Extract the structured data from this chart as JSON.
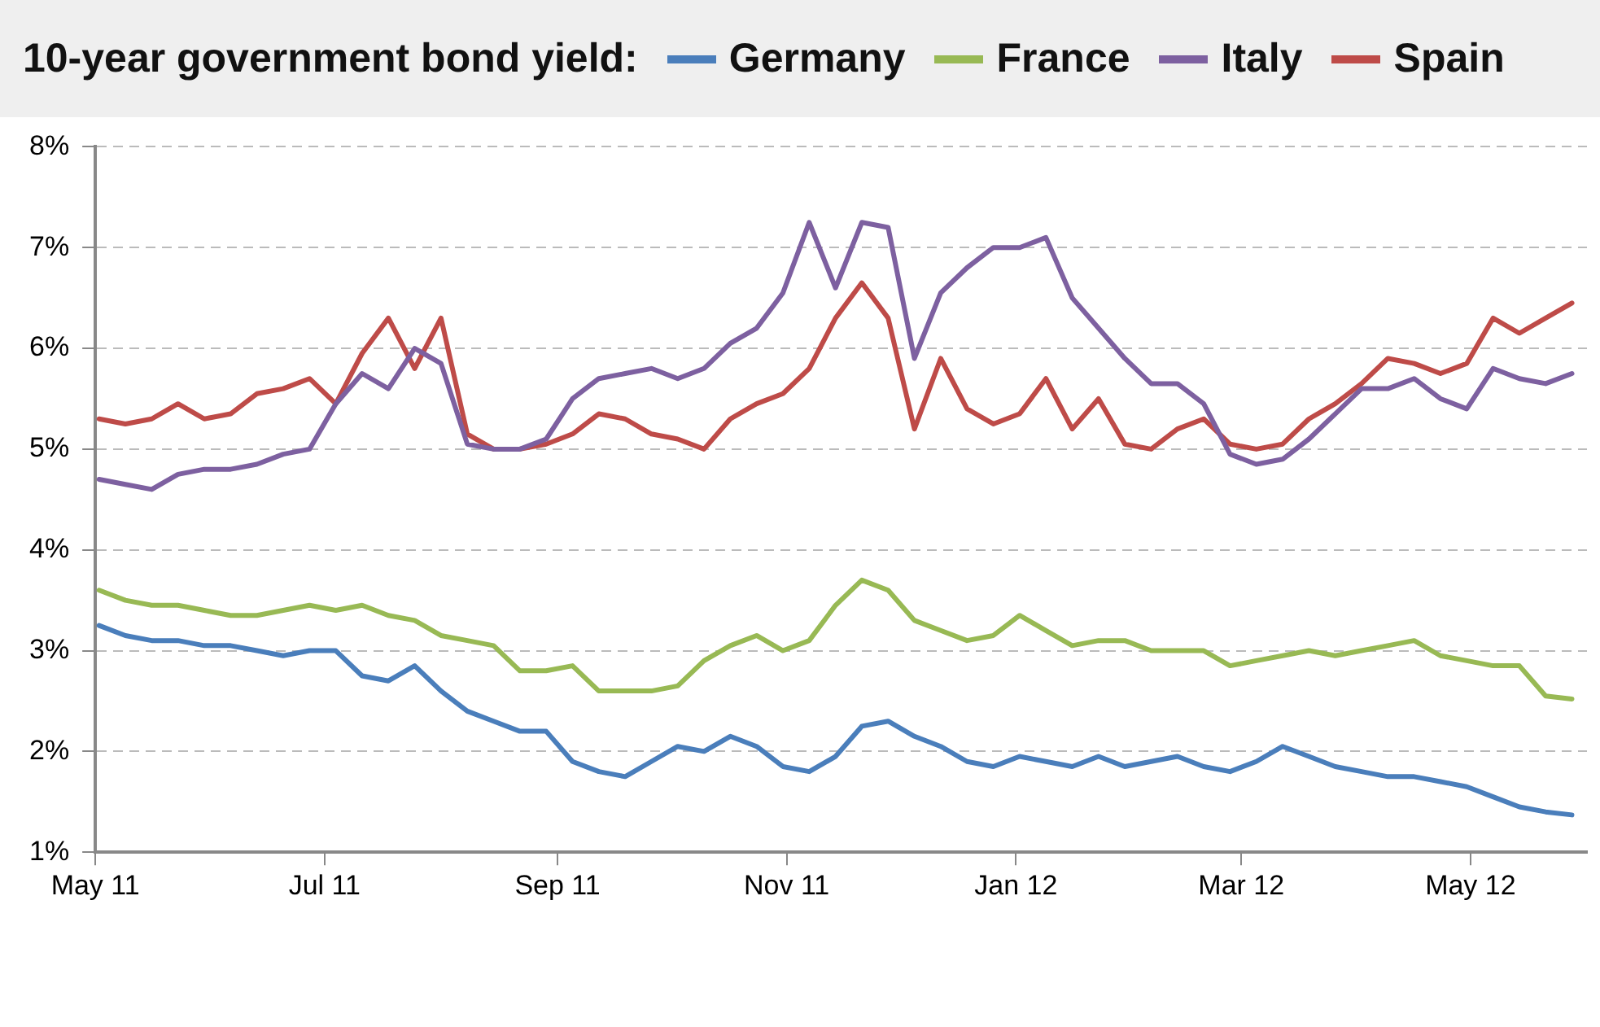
{
  "chart_data": {
    "type": "line",
    "title": "10-year government bond yield:",
    "legend": "top",
    "grid": "y",
    "marker": "none",
    "line_style": "solid",
    "x": [
      "2011-05-02",
      "2011-05-09",
      "2011-05-16",
      "2011-05-23",
      "2011-05-30",
      "2011-06-06",
      "2011-06-13",
      "2011-06-20",
      "2011-06-27",
      "2011-07-04",
      "2011-07-11",
      "2011-07-18",
      "2011-07-25",
      "2011-08-01",
      "2011-08-08",
      "2011-08-15",
      "2011-08-22",
      "2011-08-29",
      "2011-09-05",
      "2011-09-12",
      "2011-09-19",
      "2011-09-26",
      "2011-10-03",
      "2011-10-10",
      "2011-10-17",
      "2011-10-24",
      "2011-10-31",
      "2011-11-07",
      "2011-11-14",
      "2011-11-21",
      "2011-11-28",
      "2011-12-05",
      "2011-12-12",
      "2011-12-19",
      "2011-12-26",
      "2012-01-02",
      "2012-01-09",
      "2012-01-16",
      "2012-01-23",
      "2012-01-30",
      "2012-02-06",
      "2012-02-13",
      "2012-02-20",
      "2012-02-27",
      "2012-03-05",
      "2012-03-12",
      "2012-03-19",
      "2012-03-26",
      "2012-04-02",
      "2012-04-09",
      "2012-04-16",
      "2012-04-23",
      "2012-04-30",
      "2012-05-07",
      "2012-05-14",
      "2012-05-21",
      "2012-05-28"
    ],
    "xlim": [
      "2011-05-01",
      "2012-06-01"
    ],
    "xticks": [
      {
        "value": "2011-05-01",
        "label": "May 11"
      },
      {
        "value": "2011-07-01",
        "label": "Jul 11"
      },
      {
        "value": "2011-09-01",
        "label": "Sep 11"
      },
      {
        "value": "2011-11-01",
        "label": "Nov 11"
      },
      {
        "value": "2012-01-01",
        "label": "Jan 12"
      },
      {
        "value": "2012-03-01",
        "label": "Mar 12"
      },
      {
        "value": "2012-05-01",
        "label": "May 12"
      }
    ],
    "ylim": [
      1,
      8
    ],
    "yticks": [
      {
        "value": 1,
        "label": "1%"
      },
      {
        "value": 2,
        "label": "2%"
      },
      {
        "value": 3,
        "label": "3%"
      },
      {
        "value": 4,
        "label": "4%"
      },
      {
        "value": 5,
        "label": "5%"
      },
      {
        "value": 6,
        "label": "6%"
      },
      {
        "value": 7,
        "label": "7%"
      },
      {
        "value": 8,
        "label": "8%"
      }
    ],
    "series": [
      {
        "name": "Germany",
        "color": "#4a7ebb",
        "values": [
          3.25,
          3.15,
          3.1,
          3.1,
          3.05,
          3.05,
          3.0,
          2.95,
          3.0,
          3.0,
          2.75,
          2.7,
          2.85,
          2.6,
          2.4,
          2.3,
          2.2,
          2.2,
          1.9,
          1.8,
          1.75,
          1.9,
          2.05,
          2.0,
          2.15,
          2.05,
          1.85,
          1.8,
          1.95,
          2.25,
          2.3,
          2.15,
          2.05,
          1.9,
          1.85,
          1.95,
          1.9,
          1.85,
          1.95,
          1.85,
          1.9,
          1.95,
          1.85,
          1.8,
          1.9,
          2.05,
          1.95,
          1.85,
          1.8,
          1.75,
          1.75,
          1.7,
          1.65,
          1.55,
          1.45,
          1.4,
          1.37
        ]
      },
      {
        "name": "France",
        "color": "#98b954",
        "values": [
          3.6,
          3.5,
          3.45,
          3.45,
          3.4,
          3.35,
          3.35,
          3.4,
          3.45,
          3.4,
          3.45,
          3.35,
          3.3,
          3.15,
          3.1,
          3.05,
          2.8,
          2.8,
          2.85,
          2.6,
          2.6,
          2.6,
          2.65,
          2.9,
          3.05,
          3.15,
          3.0,
          3.1,
          3.45,
          3.7,
          3.6,
          3.3,
          3.2,
          3.1,
          3.15,
          3.35,
          3.2,
          3.05,
          3.1,
          3.1,
          3.0,
          3.0,
          3.0,
          2.85,
          2.9,
          2.95,
          3.0,
          2.95,
          3.0,
          3.05,
          3.1,
          2.95,
          2.9,
          2.85,
          2.85,
          2.55,
          2.52
        ]
      },
      {
        "name": "Italy",
        "color": "#7d60a0",
        "values": [
          4.7,
          4.65,
          4.6,
          4.75,
          4.8,
          4.8,
          4.85,
          4.95,
          5.0,
          5.45,
          5.75,
          5.6,
          6.0,
          5.85,
          5.05,
          5.0,
          5.0,
          5.1,
          5.5,
          5.7,
          5.75,
          5.8,
          5.7,
          5.8,
          6.05,
          6.2,
          6.55,
          7.25,
          6.6,
          7.25,
          7.2,
          5.9,
          6.55,
          6.8,
          7.0,
          7.0,
          7.1,
          6.5,
          6.2,
          5.9,
          5.65,
          5.65,
          5.45,
          4.95,
          4.85,
          4.9,
          5.1,
          5.35,
          5.6,
          5.6,
          5.7,
          5.5,
          5.4,
          5.8,
          5.7,
          5.65,
          5.75
        ]
      },
      {
        "name": "Spain",
        "color": "#be4b48",
        "values": [
          5.3,
          5.25,
          5.3,
          5.45,
          5.3,
          5.35,
          5.55,
          5.6,
          5.7,
          5.45,
          5.95,
          6.3,
          5.8,
          6.3,
          5.15,
          5.0,
          5.0,
          5.05,
          5.15,
          5.35,
          5.3,
          5.15,
          5.1,
          5.0,
          5.3,
          5.45,
          5.55,
          5.8,
          6.3,
          6.65,
          6.3,
          5.2,
          5.9,
          5.4,
          5.25,
          5.35,
          5.7,
          5.2,
          5.5,
          5.05,
          5.0,
          5.2,
          5.3,
          5.05,
          5.0,
          5.05,
          5.3,
          5.45,
          5.65,
          5.9,
          5.85,
          5.75,
          5.85,
          6.3,
          6.15,
          6.3,
          6.45
        ]
      }
    ]
  }
}
